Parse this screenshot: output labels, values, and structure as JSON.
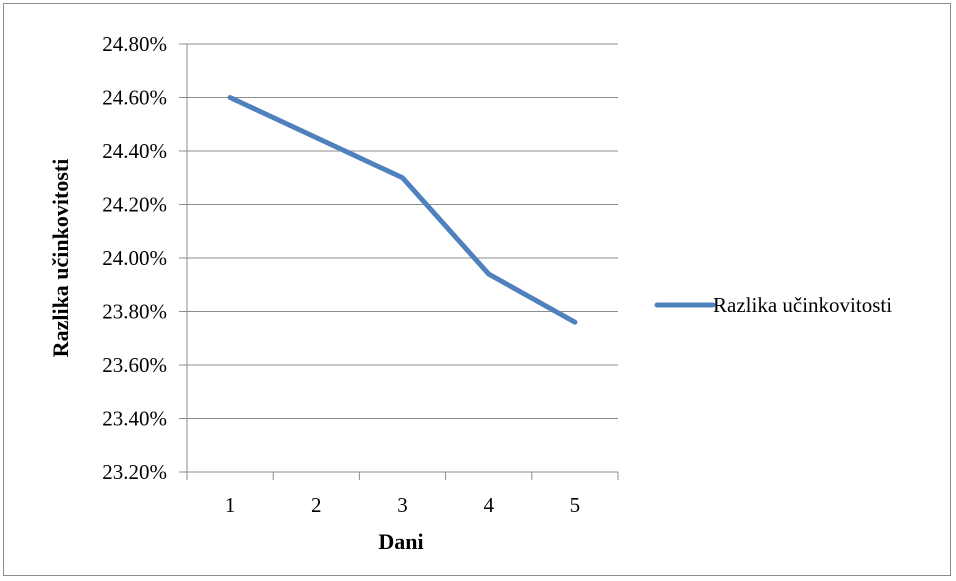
{
  "chart_data": {
    "type": "line",
    "title": "",
    "xlabel": "Dani",
    "ylabel": "Razlika učinkovitosti",
    "categories": [
      "1",
      "2",
      "3",
      "4",
      "5"
    ],
    "series": [
      {
        "name": "Razlika učinkovitosti",
        "values": [
          24.6,
          24.45,
          24.3,
          23.94,
          23.76
        ],
        "color": "#4F81BD"
      }
    ],
    "ylim": [
      23.2,
      24.8
    ],
    "ytick_step": 0.2,
    "ytick_labels": [
      "23.20%",
      "23.40%",
      "23.60%",
      "23.80%",
      "24.00%",
      "24.20%",
      "24.40%",
      "24.60%",
      "24.80%"
    ],
    "grid": true,
    "legend_position": "right"
  }
}
